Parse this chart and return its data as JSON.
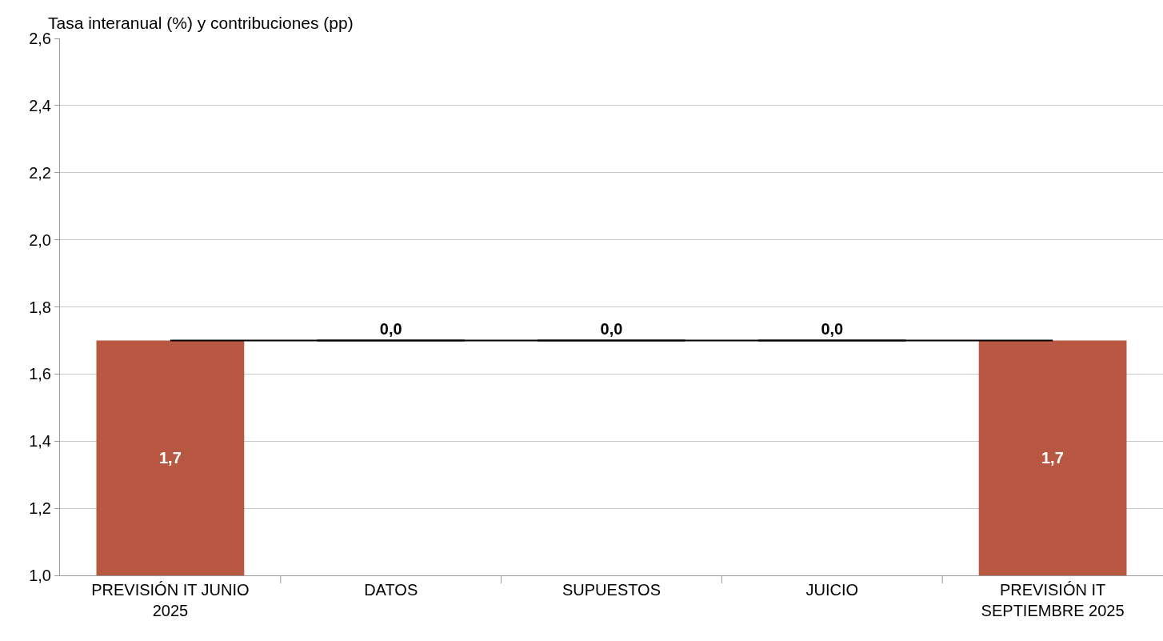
{
  "chart_data": {
    "type": "bar",
    "ylabel": "Tasa interanual (%) y contribuciones (pp)",
    "categories": [
      "PREVISIÓN IT JUNIO 2025",
      "DATOS",
      "SUPUESTOS",
      "JUICIO",
      "PREVISIÓN IT SEPTIEMBRE 2025"
    ],
    "values": [
      1.7,
      0.0,
      0.0,
      0.0,
      1.7
    ],
    "base": [
      0,
      1.7,
      1.7,
      1.7,
      0
    ],
    "colors": [
      "#b85842",
      "#000000",
      "#000000",
      "#000000",
      "#b85842"
    ],
    "value_labels": [
      "1,7",
      "0,0",
      "0,0",
      "0,0",
      "1,7"
    ],
    "ylim": [
      1.0,
      2.6
    ],
    "yticks": [
      {
        "value": 1.0,
        "label": "1,0"
      },
      {
        "value": 1.2,
        "label": "1,2"
      },
      {
        "value": 1.4,
        "label": "1,4"
      },
      {
        "value": 1.6,
        "label": "1,6"
      },
      {
        "value": 1.8,
        "label": "1,8"
      },
      {
        "value": 2.0,
        "label": "2,0"
      },
      {
        "value": 2.2,
        "label": "2,2"
      },
      {
        "value": 2.4,
        "label": "2,4"
      },
      {
        "value": 2.6,
        "label": "2,6"
      }
    ],
    "grid": "y",
    "ref_lines": [
      {
        "axis": "y",
        "value": 1.7,
        "color": "#000000"
      }
    ]
  }
}
